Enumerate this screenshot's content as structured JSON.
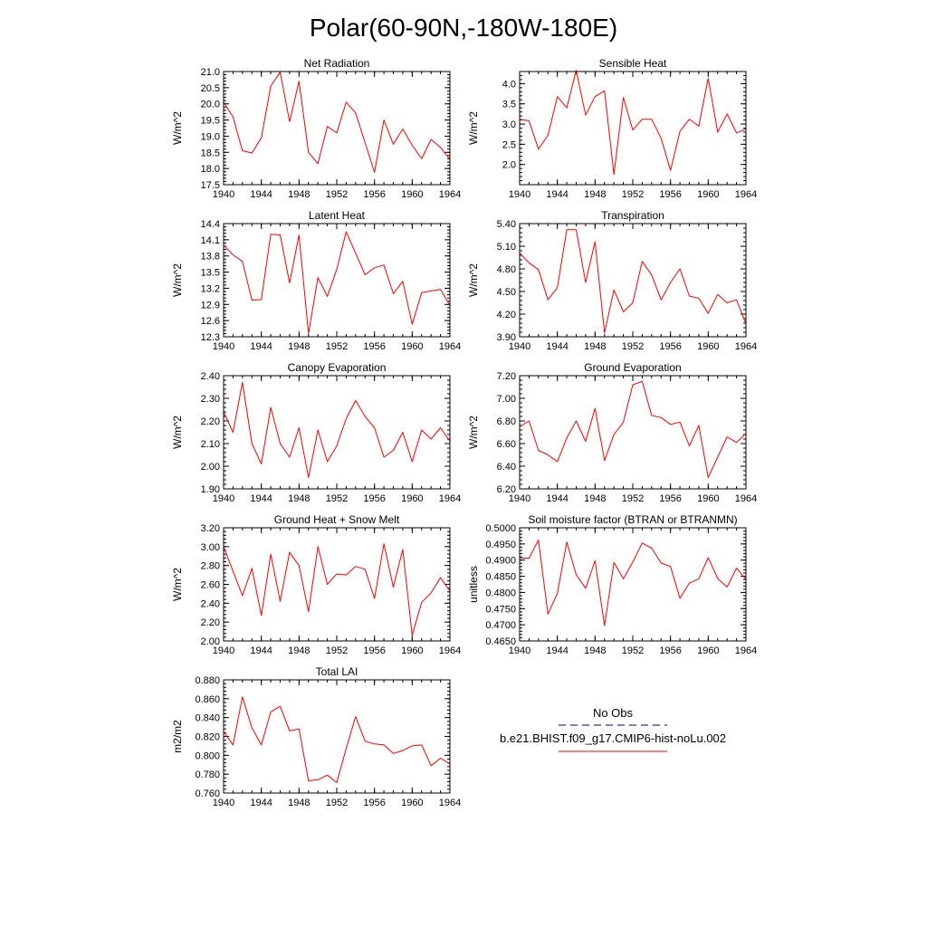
{
  "figure": {
    "title": "Polar(60-90N,-180W-180E)"
  },
  "legend": {
    "obs_label": "No Obs",
    "model_label": "b.e21.BHIST.f09_g17.CMIP6-hist-noLu.002",
    "obs_color": "#3b2f8f",
    "model_color": "#ff0000"
  },
  "chart_data": [
    {
      "type": "line",
      "title": "Net Radiation",
      "ylabel": "W/m^2",
      "xlim": [
        1940,
        1964
      ],
      "ylim": [
        17.5,
        21.0
      ],
      "xticks": [
        "1940",
        "1944",
        "1948",
        "1952",
        "1956",
        "1960",
        "1964"
      ],
      "yticks": [
        "17.5",
        "18.0",
        "18.5",
        "19.0",
        "19.5",
        "20.0",
        "20.5",
        "21.0"
      ],
      "series": [
        {
          "color": "#ff0000",
          "x": [
            1940,
            1941,
            1942,
            1943,
            1944,
            1945,
            1946,
            1947,
            1948,
            1949,
            1950,
            1951,
            1952,
            1953,
            1954,
            1955,
            1956,
            1957,
            1958,
            1959,
            1960,
            1961,
            1962,
            1963,
            1964
          ],
          "y": [
            20.05,
            19.6,
            18.55,
            18.48,
            18.95,
            20.55,
            20.98,
            19.45,
            20.7,
            18.5,
            18.15,
            19.3,
            19.1,
            20.05,
            19.72,
            18.8,
            17.88,
            19.5,
            18.75,
            19.22,
            18.72,
            18.3,
            18.9,
            18.65,
            18.28
          ]
        }
      ]
    },
    {
      "type": "line",
      "title": "Sensible Heat",
      "ylabel": "W/m^2",
      "xlim": [
        1940,
        1964
      ],
      "ylim": [
        1.5,
        4.3
      ],
      "xticks": [
        "1940",
        "1944",
        "1948",
        "1952",
        "1956",
        "1960",
        "1964"
      ],
      "yticks": [
        "2.0",
        "2.5",
        "3.0",
        "3.5",
        "4.0"
      ],
      "series": [
        {
          "color": "#ff0000",
          "x": [
            1940,
            1941,
            1942,
            1943,
            1944,
            1945,
            1946,
            1947,
            1948,
            1949,
            1950,
            1951,
            1952,
            1953,
            1954,
            1955,
            1956,
            1957,
            1958,
            1959,
            1960,
            1961,
            1962,
            1963,
            1964
          ],
          "y": [
            3.12,
            3.08,
            2.38,
            2.72,
            3.68,
            3.4,
            4.33,
            3.22,
            3.68,
            3.82,
            1.75,
            3.66,
            2.85,
            3.12,
            3.12,
            2.65,
            1.85,
            2.82,
            3.12,
            2.95,
            4.13,
            2.8,
            3.25,
            2.78,
            2.88
          ]
        }
      ]
    },
    {
      "type": "line",
      "title": "Latent Heat",
      "ylabel": "W/m^2",
      "xlim": [
        1940,
        1964
      ],
      "ylim": [
        12.3,
        14.4
      ],
      "xticks": [
        "1940",
        "1944",
        "1948",
        "1952",
        "1956",
        "1960",
        "1964"
      ],
      "yticks": [
        "12.3",
        "12.6",
        "12.9",
        "13.2",
        "13.5",
        "13.8",
        "14.1",
        "14.4"
      ],
      "series": [
        {
          "color": "#ff0000",
          "x": [
            1940,
            1941,
            1942,
            1943,
            1944,
            1945,
            1946,
            1947,
            1948,
            1949,
            1950,
            1951,
            1952,
            1953,
            1954,
            1955,
            1956,
            1957,
            1958,
            1959,
            1960,
            1961,
            1962,
            1963,
            1964
          ],
          "y": [
            14.0,
            13.82,
            13.7,
            12.98,
            12.99,
            14.2,
            14.19,
            13.3,
            14.19,
            12.36,
            13.4,
            13.05,
            13.55,
            14.25,
            13.85,
            13.45,
            13.58,
            13.63,
            13.1,
            13.33,
            12.53,
            13.12,
            13.15,
            13.18,
            12.88
          ]
        }
      ]
    },
    {
      "type": "line",
      "title": "Transpiration",
      "ylabel": "W/m^2",
      "xlim": [
        1940,
        1964
      ],
      "ylim": [
        3.9,
        5.4
      ],
      "xticks": [
        "1940",
        "1944",
        "1948",
        "1952",
        "1956",
        "1960",
        "1964"
      ],
      "yticks": [
        "3.90",
        "4.20",
        "4.50",
        "4.80",
        "5.10",
        "5.40"
      ],
      "series": [
        {
          "color": "#ff0000",
          "x": [
            1940,
            1941,
            1942,
            1943,
            1944,
            1945,
            1946,
            1947,
            1948,
            1949,
            1950,
            1951,
            1952,
            1953,
            1954,
            1955,
            1956,
            1957,
            1958,
            1959,
            1960,
            1961,
            1962,
            1963,
            1964
          ],
          "y": [
            5.01,
            4.88,
            4.79,
            4.39,
            4.55,
            5.32,
            5.32,
            4.62,
            5.16,
            3.95,
            4.52,
            4.23,
            4.35,
            4.9,
            4.72,
            4.39,
            4.62,
            4.8,
            4.44,
            4.41,
            4.21,
            4.46,
            4.35,
            4.39,
            4.07
          ]
        }
      ]
    },
    {
      "type": "line",
      "title": "Canopy Evaporation",
      "ylabel": "W/m^2",
      "xlim": [
        1940,
        1964
      ],
      "ylim": [
        1.9,
        2.4
      ],
      "xticks": [
        "1940",
        "1944",
        "1948",
        "1952",
        "1956",
        "1960",
        "1964"
      ],
      "yticks": [
        "1.90",
        "2.00",
        "2.10",
        "2.20",
        "2.30",
        "2.40"
      ],
      "series": [
        {
          "color": "#ff0000",
          "x": [
            1940,
            1941,
            1942,
            1943,
            1944,
            1945,
            1946,
            1947,
            1948,
            1949,
            1950,
            1951,
            1952,
            1953,
            1954,
            1955,
            1956,
            1957,
            1958,
            1959,
            1960,
            1961,
            1962,
            1963,
            1964
          ],
          "y": [
            2.24,
            2.15,
            2.37,
            2.1,
            2.01,
            2.26,
            2.1,
            2.04,
            2.17,
            1.95,
            2.16,
            2.02,
            2.09,
            2.21,
            2.29,
            2.22,
            2.17,
            2.04,
            2.07,
            2.15,
            2.02,
            2.16,
            2.12,
            2.17,
            2.11
          ]
        }
      ]
    },
    {
      "type": "line",
      "title": "Ground Evaporation",
      "ylabel": "W/m^2",
      "xlim": [
        1940,
        1964
      ],
      "ylim": [
        6.2,
        7.2
      ],
      "xticks": [
        "1940",
        "1944",
        "1948",
        "1952",
        "1956",
        "1960",
        "1964"
      ],
      "yticks": [
        "6.20",
        "6.40",
        "6.60",
        "6.80",
        "7.00",
        "7.20"
      ],
      "series": [
        {
          "color": "#ff0000",
          "x": [
            1940,
            1941,
            1942,
            1943,
            1944,
            1945,
            1946,
            1947,
            1948,
            1949,
            1950,
            1951,
            1952,
            1953,
            1954,
            1955,
            1956,
            1957,
            1958,
            1959,
            1960,
            1961,
            1962,
            1963,
            1964
          ],
          "y": [
            6.75,
            6.8,
            6.54,
            6.5,
            6.44,
            6.65,
            6.8,
            6.62,
            6.91,
            6.45,
            6.68,
            6.79,
            7.12,
            7.15,
            6.85,
            6.83,
            6.77,
            6.79,
            6.58,
            6.76,
            6.3,
            6.48,
            6.66,
            6.61,
            6.69
          ]
        }
      ]
    },
    {
      "type": "line",
      "title": "Ground Heat + Snow Melt",
      "ylabel": "W/m^2",
      "xlim": [
        1940,
        1964
      ],
      "ylim": [
        2.0,
        3.2
      ],
      "xticks": [
        "1940",
        "1944",
        "1948",
        "1952",
        "1956",
        "1960",
        "1964"
      ],
      "yticks": [
        "2.00",
        "2.20",
        "2.40",
        "2.60",
        "2.80",
        "3.00",
        "3.20"
      ],
      "series": [
        {
          "color": "#ff0000",
          "x": [
            1940,
            1941,
            1942,
            1943,
            1944,
            1945,
            1946,
            1947,
            1948,
            1949,
            1950,
            1951,
            1952,
            1953,
            1954,
            1955,
            1956,
            1957,
            1958,
            1959,
            1960,
            1961,
            1962,
            1963,
            1964
          ],
          "y": [
            3.0,
            2.74,
            2.48,
            2.77,
            2.27,
            2.92,
            2.42,
            2.94,
            2.8,
            2.31,
            3.0,
            2.6,
            2.71,
            2.7,
            2.79,
            2.76,
            2.45,
            3.03,
            2.57,
            2.97,
            2.06,
            2.41,
            2.51,
            2.67,
            2.53
          ]
        }
      ]
    },
    {
      "type": "line",
      "title": "Soil moisture factor (BTRAN or BTRANMN)",
      "ylabel": "unitless",
      "xlim": [
        1940,
        1964
      ],
      "ylim": [
        0.465,
        0.5
      ],
      "xticks": [
        "1940",
        "1944",
        "1948",
        "1952",
        "1956",
        "1960",
        "1964"
      ],
      "yticks": [
        "0.4650",
        "0.4700",
        "0.4750",
        "0.4800",
        "0.4850",
        "0.4900",
        "0.4950",
        "0.5000"
      ],
      "series": [
        {
          "color": "#ff0000",
          "x": [
            1940,
            1941,
            1942,
            1943,
            1944,
            1945,
            1946,
            1947,
            1948,
            1949,
            1950,
            1951,
            1952,
            1953,
            1954,
            1955,
            1956,
            1957,
            1958,
            1959,
            1960,
            1961,
            1962,
            1963,
            1964
          ],
          "y": [
            0.4907,
            0.4906,
            0.4962,
            0.4733,
            0.4797,
            0.4956,
            0.4855,
            0.4813,
            0.4898,
            0.4697,
            0.4893,
            0.4842,
            0.4894,
            0.4953,
            0.4937,
            0.4891,
            0.488,
            0.4782,
            0.4829,
            0.4842,
            0.4908,
            0.4843,
            0.4817,
            0.4875,
            0.484
          ]
        }
      ]
    },
    {
      "type": "line",
      "title": "Total LAI",
      "ylabel": "m2/m2",
      "xlim": [
        1940,
        1964
      ],
      "ylim": [
        0.76,
        0.88
      ],
      "xticks": [
        "1940",
        "1944",
        "1948",
        "1952",
        "1956",
        "1960",
        "1964"
      ],
      "yticks": [
        "0.760",
        "0.780",
        "0.800",
        "0.820",
        "0.840",
        "0.860",
        "0.880"
      ],
      "series": [
        {
          "color": "#ff0000",
          "x": [
            1940,
            1941,
            1942,
            1943,
            1944,
            1945,
            1946,
            1947,
            1948,
            1949,
            1950,
            1951,
            1952,
            1953,
            1954,
            1955,
            1956,
            1957,
            1958,
            1959,
            1960,
            1961,
            1962,
            1963,
            1964
          ],
          "y": [
            0.825,
            0.811,
            0.862,
            0.829,
            0.811,
            0.846,
            0.852,
            0.826,
            0.828,
            0.773,
            0.774,
            0.779,
            0.771,
            0.807,
            0.841,
            0.815,
            0.812,
            0.811,
            0.802,
            0.805,
            0.81,
            0.811,
            0.789,
            0.797,
            0.791
          ]
        }
      ]
    }
  ]
}
